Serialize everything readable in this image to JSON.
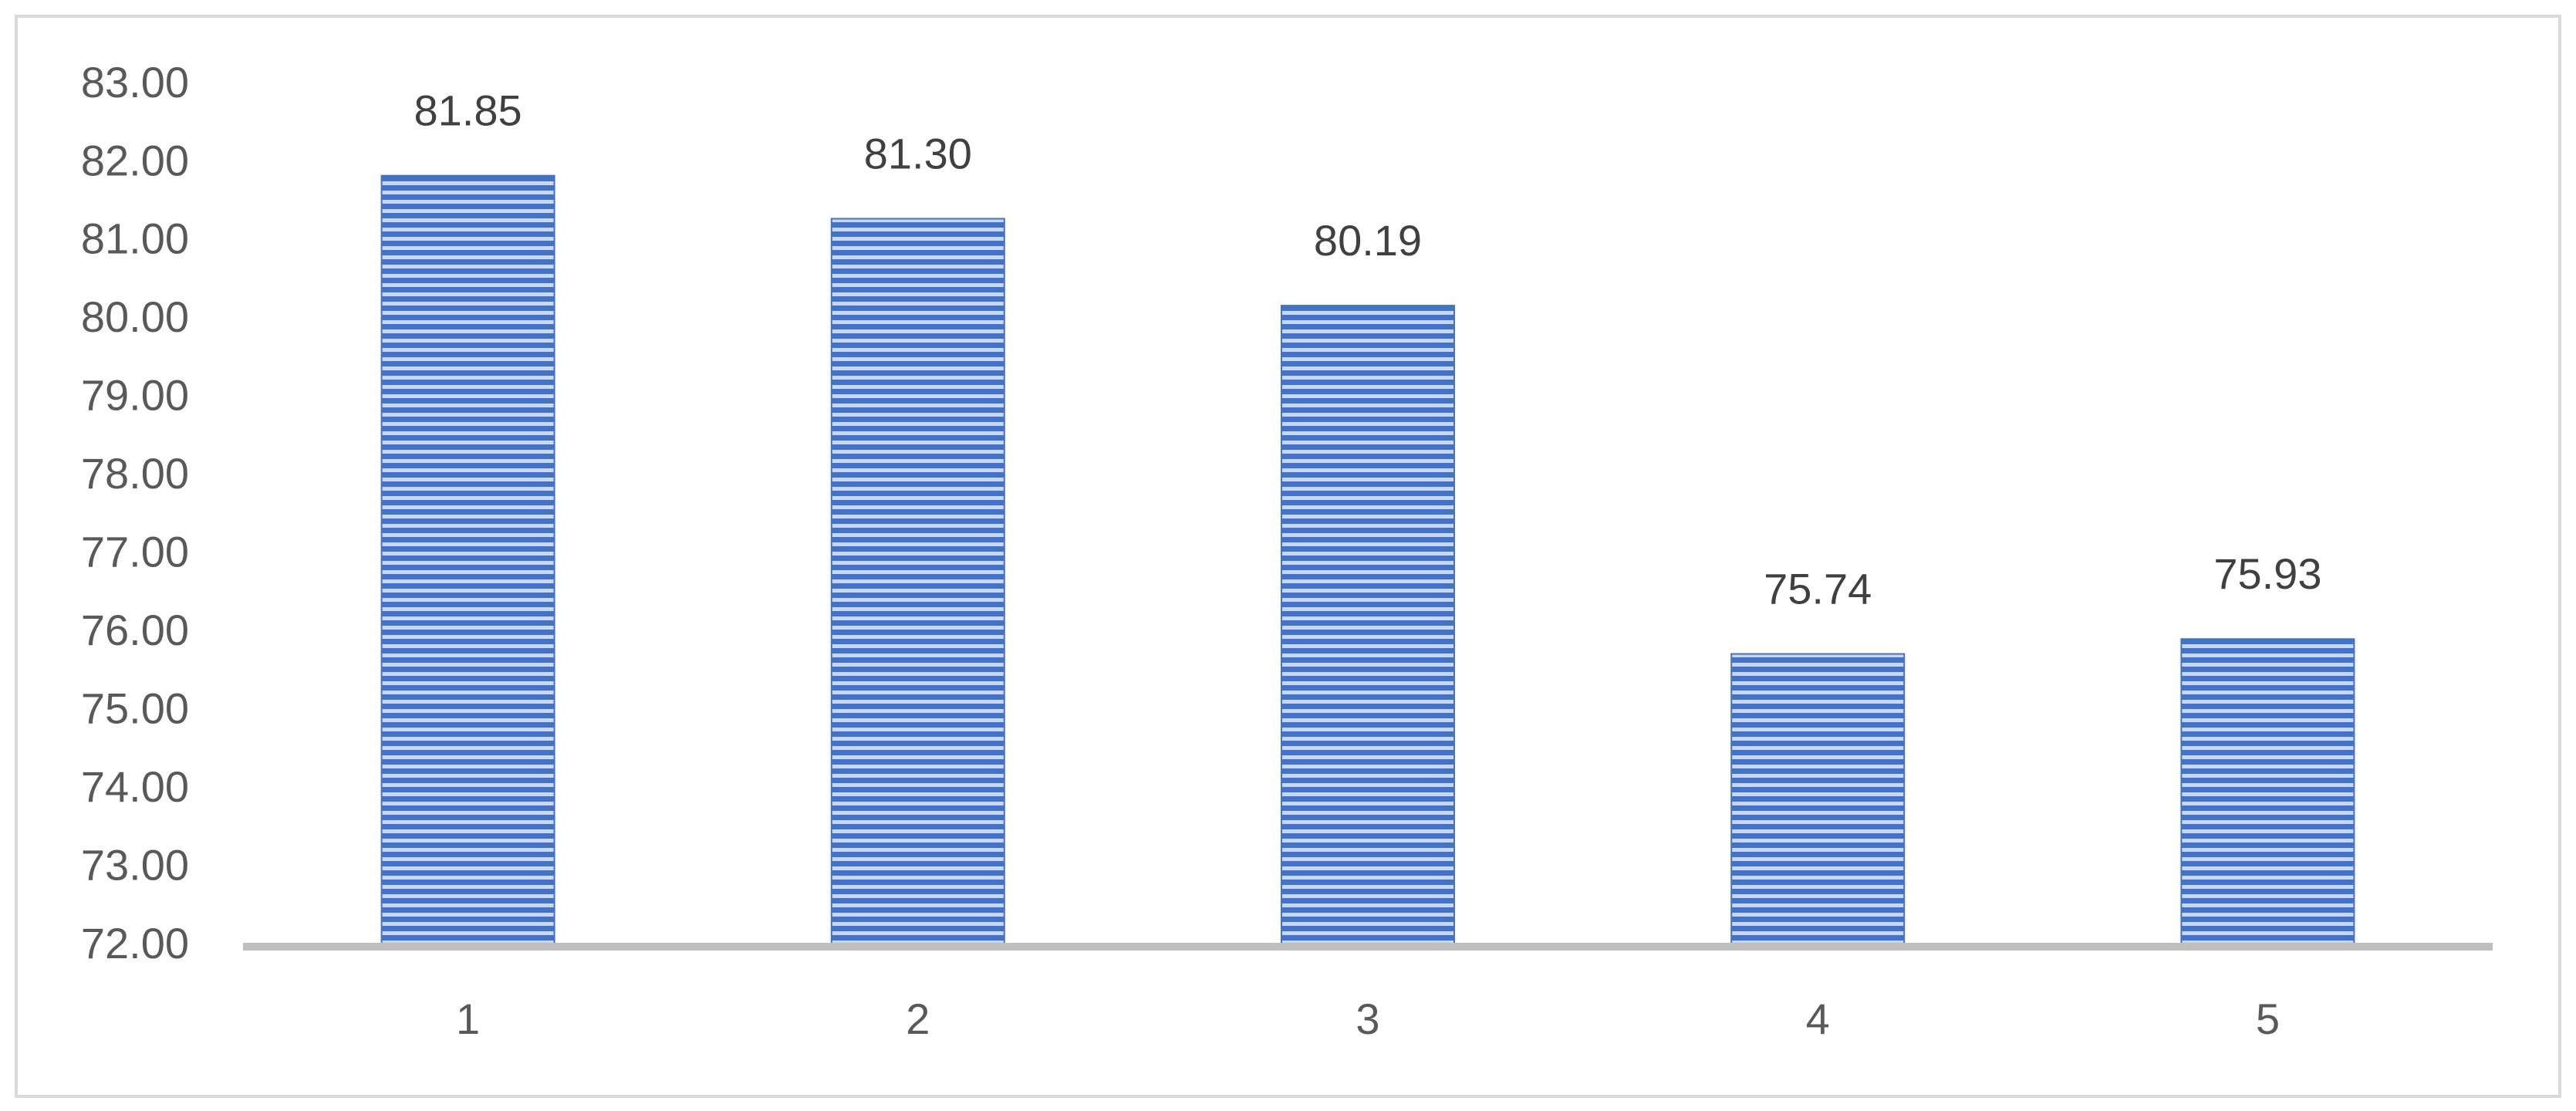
{
  "chart_data": {
    "type": "bar",
    "categories": [
      "1",
      "2",
      "3",
      "4",
      "5"
    ],
    "values": [
      81.85,
      81.3,
      80.19,
      75.74,
      75.93
    ],
    "value_labels": [
      "81.85",
      "81.30",
      "80.19",
      "75.74",
      "75.93"
    ],
    "color": "#4472c4",
    "ylim": [
      72,
      83
    ],
    "yticks": [
      {
        "value": 72,
        "label": "72.00"
      },
      {
        "value": 73,
        "label": "73.00"
      },
      {
        "value": 74,
        "label": "74.00"
      },
      {
        "value": 75,
        "label": "75.00"
      },
      {
        "value": 76,
        "label": "76.00"
      },
      {
        "value": 77,
        "label": "77.00"
      },
      {
        "value": 78,
        "label": "78.00"
      },
      {
        "value": 79,
        "label": "79.00"
      },
      {
        "value": 80,
        "label": "80.00"
      },
      {
        "value": 81,
        "label": "81.00"
      },
      {
        "value": 82,
        "label": "82.00"
      },
      {
        "value": 83,
        "label": "83.00"
      }
    ],
    "grid": false
  }
}
